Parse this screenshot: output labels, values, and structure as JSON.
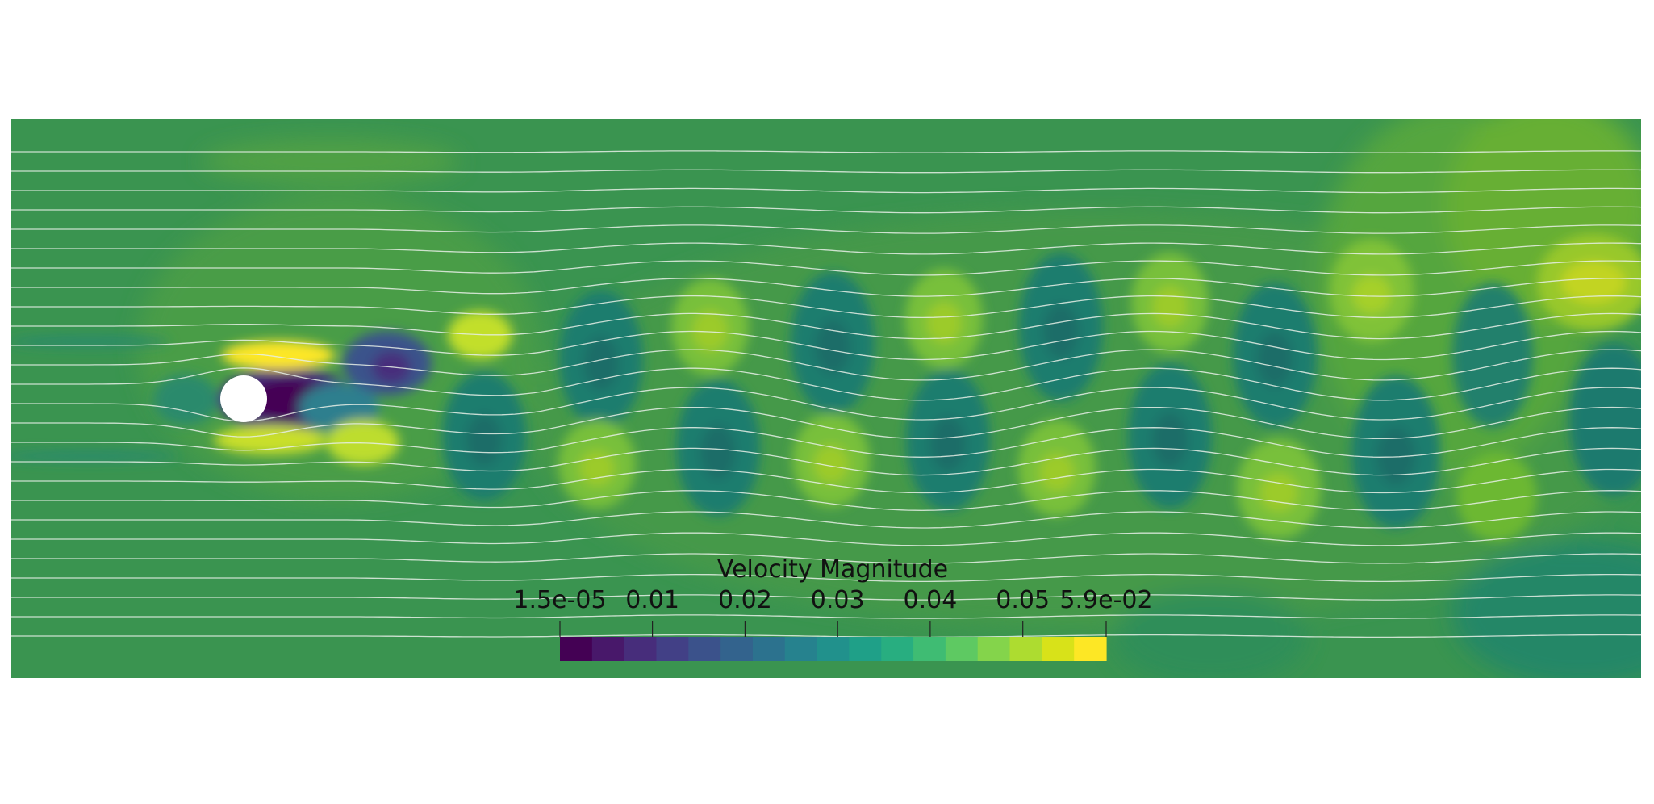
{
  "legend": {
    "title": "Velocity Magnitude",
    "tick_labels": [
      "1.5e-05",
      "0.01",
      "0.02",
      "0.03",
      "0.04",
      "0.05",
      "5.9e-02"
    ],
    "tick_values": [
      1.5e-05,
      0.01,
      0.02,
      0.03,
      0.04,
      0.05,
      0.059
    ],
    "range": [
      1.5e-05,
      0.059
    ],
    "colormap": "viridis",
    "swatches": [
      "#440154",
      "#48186a",
      "#472d7b",
      "#424086",
      "#3b528b",
      "#33638d",
      "#2c728e",
      "#26828e",
      "#21918c",
      "#1fa088",
      "#28ae80",
      "#3fbc73",
      "#5ec962",
      "#84d44b",
      "#addc30",
      "#d8e219",
      "#fde725"
    ]
  },
  "field": {
    "background_color": "#3a9450",
    "streamline_color": "#e6efe6",
    "obstacle_color": "#ffffff"
  }
}
